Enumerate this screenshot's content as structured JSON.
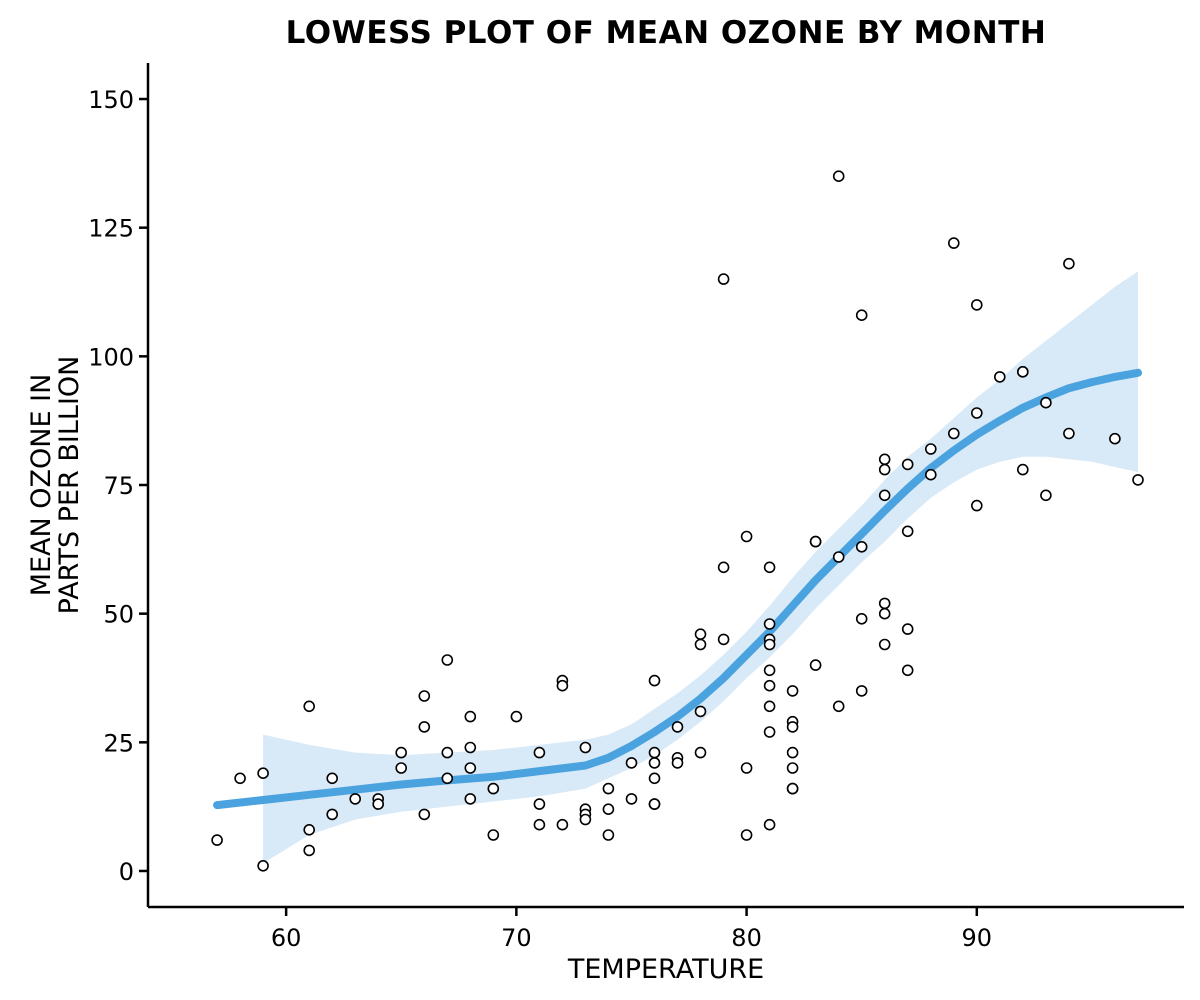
{
  "chart_data": {
    "type": "scatter",
    "title": "LOWESS PLOT OF MEAN OZONE BY MONTH",
    "xlabel": "TEMPERATURE",
    "ylabel": [
      "MEAN OZONE IN",
      "PARTS PER BILLION"
    ],
    "xlim": [
      54,
      99
    ],
    "ylim": [
      -7,
      157
    ],
    "xticks": [
      60,
      70,
      80,
      90
    ],
    "yticks": [
      0,
      25,
      50,
      75,
      100,
      125,
      150
    ],
    "grid": false,
    "colors": {
      "points_stroke": "#000000",
      "line": "#4aa3df",
      "band": "#d8e9f7"
    },
    "points": [
      [
        57,
        6
      ],
      [
        58,
        18
      ],
      [
        59,
        19
      ],
      [
        59,
        1
      ],
      [
        61,
        32
      ],
      [
        61,
        8
      ],
      [
        61,
        4
      ],
      [
        62,
        18
      ],
      [
        62,
        11
      ],
      [
        63,
        14
      ],
      [
        64,
        14
      ],
      [
        64,
        13
      ],
      [
        65,
        23
      ],
      [
        65,
        20
      ],
      [
        66,
        34
      ],
      [
        66,
        28
      ],
      [
        66,
        11
      ],
      [
        67,
        41
      ],
      [
        67,
        23
      ],
      [
        67,
        18
      ],
      [
        68,
        30
      ],
      [
        68,
        24
      ],
      [
        68,
        20
      ],
      [
        68,
        14
      ],
      [
        69,
        16
      ],
      [
        69,
        7
      ],
      [
        70,
        30
      ],
      [
        71,
        23
      ],
      [
        71,
        13
      ],
      [
        71,
        9
      ],
      [
        72,
        37
      ],
      [
        72,
        36
      ],
      [
        72,
        9
      ],
      [
        73,
        24
      ],
      [
        73,
        12
      ],
      [
        73,
        11
      ],
      [
        73,
        10
      ],
      [
        74,
        16
      ],
      [
        74,
        12
      ],
      [
        74,
        7
      ],
      [
        75,
        21
      ],
      [
        75,
        14
      ],
      [
        76,
        37
      ],
      [
        76,
        23
      ],
      [
        76,
        21
      ],
      [
        76,
        18
      ],
      [
        76,
        13
      ],
      [
        76,
        13
      ],
      [
        77,
        28
      ],
      [
        77,
        22
      ],
      [
        77,
        21
      ],
      [
        78,
        46
      ],
      [
        78,
        44
      ],
      [
        78,
        31
      ],
      [
        78,
        23
      ],
      [
        79,
        115
      ],
      [
        79,
        59
      ],
      [
        79,
        45
      ],
      [
        80,
        65
      ],
      [
        80,
        20
      ],
      [
        80,
        7
      ],
      [
        81,
        59
      ],
      [
        81,
        48
      ],
      [
        81,
        45
      ],
      [
        81,
        44
      ],
      [
        81,
        39
      ],
      [
        81,
        36
      ],
      [
        81,
        32
      ],
      [
        81,
        27
      ],
      [
        81,
        9
      ],
      [
        82,
        35
      ],
      [
        82,
        29
      ],
      [
        82,
        28
      ],
      [
        82,
        23
      ],
      [
        82,
        20
      ],
      [
        82,
        16
      ],
      [
        82,
        16
      ],
      [
        83,
        64
      ],
      [
        83,
        64
      ],
      [
        83,
        40
      ],
      [
        84,
        135
      ],
      [
        84,
        61
      ],
      [
        84,
        32
      ],
      [
        85,
        108
      ],
      [
        85,
        63
      ],
      [
        85,
        49
      ],
      [
        85,
        35
      ],
      [
        86,
        80
      ],
      [
        86,
        78
      ],
      [
        86,
        73
      ],
      [
        86,
        52
      ],
      [
        86,
        50
      ],
      [
        86,
        44
      ],
      [
        87,
        79
      ],
      [
        87,
        66
      ],
      [
        87,
        47
      ],
      [
        87,
        39
      ],
      [
        88,
        82
      ],
      [
        88,
        77
      ],
      [
        89,
        122
      ],
      [
        89,
        85
      ],
      [
        90,
        110
      ],
      [
        90,
        89
      ],
      [
        90,
        71
      ],
      [
        91,
        96
      ],
      [
        92,
        97
      ],
      [
        92,
        97
      ],
      [
        92,
        78
      ],
      [
        93,
        91
      ],
      [
        93,
        73
      ],
      [
        94,
        118
      ],
      [
        94,
        85
      ],
      [
        96,
        84
      ],
      [
        97,
        76
      ]
    ],
    "lowess": {
      "x": [
        57,
        59,
        61,
        63,
        65,
        67,
        69,
        71,
        73,
        74,
        75,
        76,
        77,
        78,
        79,
        80,
        81,
        82,
        83,
        84,
        85,
        86,
        87,
        88,
        89,
        90,
        91,
        92,
        93,
        94,
        95,
        96,
        97
      ],
      "y": [
        12.8,
        13.8,
        14.8,
        15.8,
        16.8,
        17.6,
        18.3,
        19.4,
        20.5,
        22.0,
        24.3,
        27.0,
        30.0,
        33.5,
        37.5,
        42.0,
        46.5,
        51.5,
        56.5,
        61.0,
        65.5,
        70.0,
        74.3,
        78.3,
        81.7,
        84.8,
        87.5,
        90.0,
        92.0,
        93.8,
        95.0,
        96.0,
        96.8
      ],
      "lower": [
        0.0,
        1.5,
        7.0,
        10.0,
        11.5,
        12.5,
        13.5,
        14.5,
        16.0,
        18.0,
        20.0,
        22.5,
        25.5,
        29.0,
        33.0,
        37.5,
        41.5,
        46.0,
        51.0,
        55.5,
        60.0,
        64.0,
        68.5,
        72.5,
        75.5,
        78.0,
        79.5,
        80.5,
        80.5,
        80.0,
        79.5,
        78.5,
        77.5
      ],
      "upper": [
        null,
        26.5,
        24.5,
        23.0,
        22.5,
        23.0,
        23.5,
        24.5,
        25.5,
        26.5,
        28.5,
        31.5,
        34.5,
        38.0,
        42.0,
        46.5,
        51.5,
        57.0,
        62.0,
        66.5,
        71.0,
        76.0,
        80.5,
        84.0,
        88.0,
        92.0,
        95.5,
        99.5,
        103.0,
        106.5,
        110.0,
        113.5,
        116.5
      ]
    }
  }
}
